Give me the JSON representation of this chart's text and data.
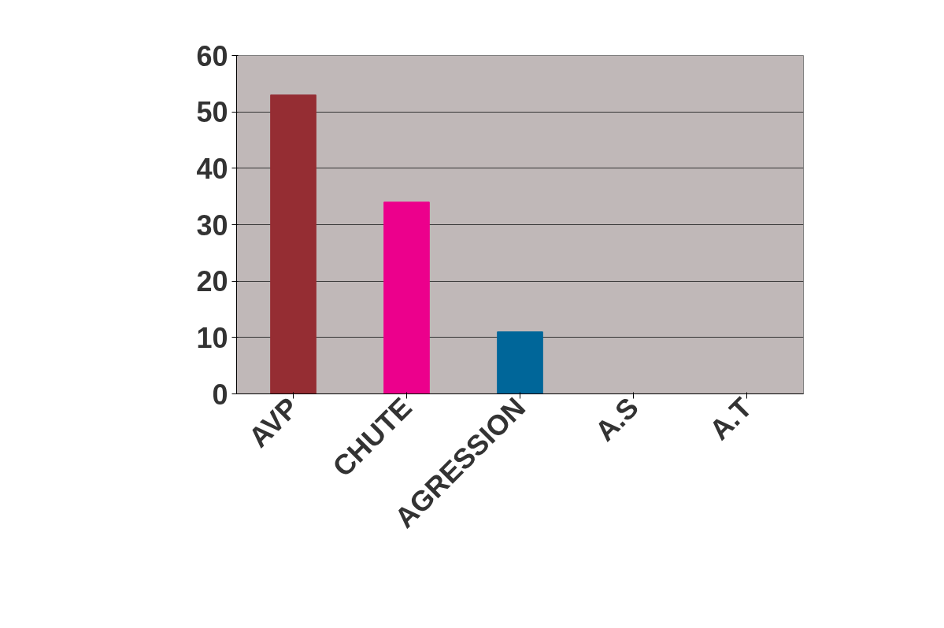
{
  "chart_data": {
    "type": "bar",
    "categories": [
      "AVP",
      "CHUTE",
      "AGRESSION",
      "A.S",
      "A.T"
    ],
    "values": [
      53,
      34,
      11,
      0,
      0
    ],
    "colors": [
      "#952d33",
      "#ec008c",
      "#006699",
      "#333333",
      "#8080b0"
    ],
    "ylim": [
      0,
      60
    ],
    "yticks": [
      0,
      10,
      20,
      30,
      40,
      50,
      60
    ],
    "grid": "y"
  }
}
